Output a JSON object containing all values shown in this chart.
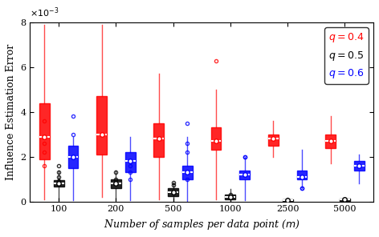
{
  "title": "",
  "xlabel": "Number of samples per data point ($m$)",
  "ylabel": "Influence Estimation Error",
  "ylim": [
    0,
    0.008
  ],
  "yticks": [
    0,
    0.002,
    0.004,
    0.006,
    0.008
  ],
  "ytick_labels": [
    "0",
    "2",
    "4",
    "6",
    "8"
  ],
  "m_values": [
    100,
    200,
    500,
    1000,
    2500,
    5000
  ],
  "colors": {
    "q04": "#FF0000",
    "q05": "#000000",
    "q06": "#0000FF"
  },
  "legend": {
    "q04_label": "$q = 0.4$",
    "q05_label": "$q = 0.5$",
    "q06_label": "$q = 0.6$"
  },
  "box_data": {
    "q04": {
      "100": {
        "q1": 0.0019,
        "med": 0.0029,
        "q3": 0.0044,
        "whishi": 0.0079,
        "whislo": 0.0001,
        "fliers": [
          0.0036,
          0.0029,
          0.0022,
          0.0026,
          0.0016
        ]
      },
      "200": {
        "q1": 0.0021,
        "med": 0.003,
        "q3": 0.0047,
        "whishi": 0.0079,
        "whislo": 0.0002,
        "fliers": []
      },
      "500": {
        "q1": 0.002,
        "med": 0.0028,
        "q3": 0.0035,
        "whishi": 0.0057,
        "whislo": 0.0001,
        "fliers": []
      },
      "1000": {
        "q1": 0.0023,
        "med": 0.0027,
        "q3": 0.0033,
        "whishi": 0.005,
        "whislo": 0.0001,
        "fliers": [
          0.0063
        ]
      },
      "2500": {
        "q1": 0.0025,
        "med": 0.0028,
        "q3": 0.003,
        "whishi": 0.0036,
        "whislo": 0.002,
        "fliers": []
      },
      "5000": {
        "q1": 0.0024,
        "med": 0.0027,
        "q3": 0.003,
        "whishi": 0.0038,
        "whislo": 0.0017,
        "fliers": []
      }
    },
    "q05": {
      "100": {
        "q1": 0.00065,
        "med": 0.0008,
        "q3": 0.00095,
        "whishi": 0.0014,
        "whislo": 5e-05,
        "fliers": [
          0.0016,
          0.0013,
          0.0009,
          0.0011
        ]
      },
      "200": {
        "q1": 0.0006,
        "med": 0.0008,
        "q3": 0.001,
        "whishi": 0.0014,
        "whislo": 5e-05,
        "fliers": [
          0.0013,
          0.001
        ]
      },
      "500": {
        "q1": 0.00025,
        "med": 0.0004,
        "q3": 0.0006,
        "whishi": 0.00085,
        "whislo": 1e-05,
        "fliers": [
          0.00085,
          0.00075
        ]
      },
      "1000": {
        "q1": 0.0001,
        "med": 0.0002,
        "q3": 0.0003,
        "whishi": 0.00055,
        "whislo": 1e-05,
        "fliers": [
          0.0003,
          0.0002
        ]
      },
      "2500": {
        "q1": 1e-05,
        "med": 5e-05,
        "q3": 0.0001,
        "whishi": 0.00015,
        "whislo": 5e-06,
        "fliers": []
      },
      "5000": {
        "q1": 2e-05,
        "med": 8e-05,
        "q3": 0.00012,
        "whishi": 0.00018,
        "whislo": 5e-06,
        "fliers": []
      }
    },
    "q06": {
      "100": {
        "q1": 0.0015,
        "med": 0.002,
        "q3": 0.0025,
        "whishi": 0.0029,
        "whislo": 5e-05,
        "fliers": [
          0.0038,
          0.003
        ]
      },
      "200": {
        "q1": 0.0013,
        "med": 0.0018,
        "q3": 0.0022,
        "whishi": 0.0029,
        "whislo": 5e-05,
        "fliers": [
          0.0016,
          0.0013,
          0.001
        ]
      },
      "500": {
        "q1": 0.001,
        "med": 0.0013,
        "q3": 0.0016,
        "whishi": 0.0029,
        "whislo": 1e-05,
        "fliers": [
          0.0035,
          0.0026,
          0.0022,
          0.001
        ]
      },
      "1000": {
        "q1": 0.001,
        "med": 0.0012,
        "q3": 0.0014,
        "whishi": 0.002,
        "whislo": 5e-05,
        "fliers": [
          0.002,
          0.002
        ]
      },
      "2500": {
        "q1": 0.001,
        "med": 0.0011,
        "q3": 0.0014,
        "whishi": 0.0023,
        "whislo": 0.0006,
        "fliers": [
          0.0006,
          0.0006
        ]
      },
      "5000": {
        "q1": 0.0014,
        "med": 0.0016,
        "q3": 0.0018,
        "whishi": 0.0021,
        "whislo": 0.0008,
        "fliers": []
      }
    }
  }
}
